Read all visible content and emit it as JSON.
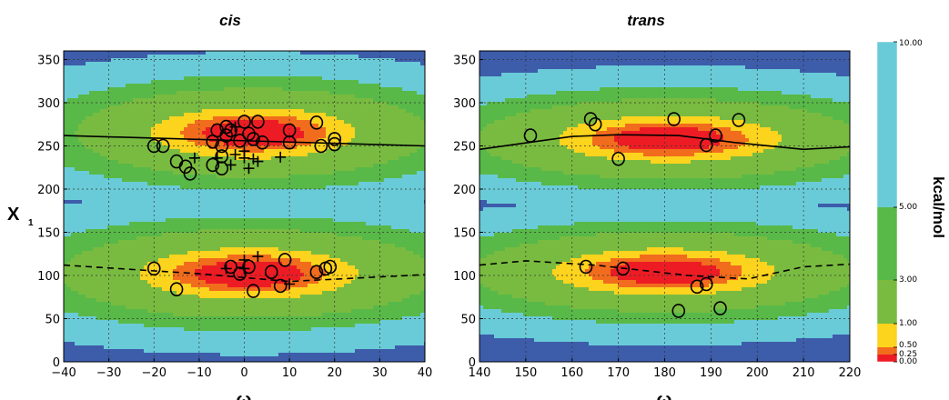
{
  "chart_data": [
    {
      "type": "heatmap",
      "title": "cis",
      "xlabel": "ω",
      "ylabel": "X",
      "ylabel_subscript": "1",
      "xlim": [
        -40,
        40
      ],
      "ylim": [
        0,
        360
      ],
      "xticks": [
        "−40",
        "−30",
        "−20",
        "−10",
        "0",
        "10",
        "20",
        "30",
        "40"
      ],
      "xtick_values": [
        -40,
        -30,
        -20,
        -10,
        0,
        10,
        20,
        30,
        40
      ],
      "yticks": [
        "0",
        "50",
        "100",
        "150",
        "200",
        "250",
        "300",
        "350"
      ],
      "ytick_values": [
        0,
        50,
        100,
        150,
        200,
        250,
        300,
        350
      ],
      "grid": true,
      "energy_field": {
        "minima": [
          {
            "x": 2,
            "y": 265,
            "sx": 16,
            "sy": 21
          },
          {
            "x": 1,
            "y": 102,
            "sx": 17,
            "sy": 21
          }
        ]
      },
      "solid_line": [
        [
          -40,
          262
        ],
        [
          40,
          250
        ]
      ],
      "dashed_line": [
        [
          -40,
          112
        ],
        [
          -10,
          102
        ],
        [
          10,
          93
        ],
        [
          40,
          101
        ]
      ],
      "circles": [
        [
          -20,
          250
        ],
        [
          -18,
          250
        ],
        [
          -15,
          232
        ],
        [
          -13,
          226
        ],
        [
          -12,
          218
        ],
        [
          -7,
          228
        ],
        [
          -7,
          255
        ],
        [
          -6,
          268
        ],
        [
          -5,
          250
        ],
        [
          -5,
          238
        ],
        [
          -5,
          224
        ],
        [
          -4,
          272
        ],
        [
          -4,
          262
        ],
        [
          -3,
          268
        ],
        [
          -1,
          256
        ],
        [
          0,
          278
        ],
        [
          1,
          264
        ],
        [
          2,
          258
        ],
        [
          3,
          278
        ],
        [
          4,
          254
        ],
        [
          10,
          268
        ],
        [
          10,
          254
        ],
        [
          16,
          277
        ],
        [
          17,
          250
        ],
        [
          20,
          258
        ],
        [
          20,
          252
        ],
        [
          -20,
          108
        ],
        [
          -15,
          84
        ],
        [
          -3,
          110
        ],
        [
          -1,
          102
        ],
        [
          1,
          110
        ],
        [
          2,
          82
        ],
        [
          6,
          104
        ],
        [
          8,
          88
        ],
        [
          9,
          118
        ],
        [
          16,
          104
        ],
        [
          18,
          108
        ],
        [
          19,
          110
        ]
      ],
      "crosses": [
        [
          -11,
          236
        ],
        [
          -6,
          236
        ],
        [
          -3,
          228
        ],
        [
          -2,
          240
        ],
        [
          -2,
          272
        ],
        [
          0,
          244
        ],
        [
          0,
          236
        ],
        [
          1,
          224
        ],
        [
          2,
          235
        ],
        [
          3,
          232
        ],
        [
          8,
          237
        ],
        [
          0,
          118
        ],
        [
          0,
          108
        ],
        [
          -4,
          108
        ],
        [
          3,
          122
        ],
        [
          10,
          90
        ]
      ]
    },
    {
      "type": "heatmap",
      "title": "trans",
      "xlabel": "ω",
      "xlim": [
        140,
        220
      ],
      "ylim": [
        0,
        360
      ],
      "xticks": [
        "140",
        "150",
        "160",
        "170",
        "180",
        "190",
        "200",
        "210",
        "220"
      ],
      "xtick_values": [
        140,
        150,
        160,
        170,
        180,
        190,
        200,
        210,
        220
      ],
      "yticks": [
        "0",
        "50",
        "100",
        "150",
        "200",
        "250",
        "300",
        "350"
      ],
      "ytick_values": [
        0,
        50,
        100,
        150,
        200,
        250,
        300,
        350
      ],
      "grid": true,
      "energy_field": {
        "minima": [
          {
            "x": 181,
            "y": 258,
            "sx": 17,
            "sy": 19
          },
          {
            "x": 180,
            "y": 104,
            "sx": 17,
            "sy": 19
          }
        ]
      },
      "solid_line": [
        [
          140,
          246
        ],
        [
          160,
          261
        ],
        [
          170,
          263
        ],
        [
          183,
          262
        ],
        [
          195,
          254
        ],
        [
          210,
          246
        ],
        [
          220,
          249
        ]
      ],
      "dashed_line": [
        [
          140,
          112
        ],
        [
          150,
          117
        ],
        [
          165,
          112
        ],
        [
          185,
          100
        ],
        [
          198,
          96
        ],
        [
          210,
          110
        ],
        [
          220,
          113
        ]
      ],
      "circles": [
        [
          151,
          262
        ],
        [
          164,
          281
        ],
        [
          165,
          275
        ],
        [
          170,
          235
        ],
        [
          182,
          281
        ],
        [
          189,
          251
        ],
        [
          191,
          262
        ],
        [
          196,
          280
        ],
        [
          163,
          110
        ],
        [
          171,
          108
        ],
        [
          187,
          87
        ],
        [
          189,
          90
        ],
        [
          183,
          59
        ],
        [
          192,
          62
        ]
      ],
      "crosses": []
    }
  ],
  "colorbar": {
    "label": "kcal/mol",
    "levels": [
      0.0,
      0.25,
      0.5,
      1.0,
      3.0,
      5.0,
      10.0
    ],
    "tick_labels": [
      "0.00",
      "0.25",
      "0.50",
      "1.00",
      "3.00",
      "5.00",
      "10.00"
    ],
    "colors": [
      "#ed1c24",
      "#f26c1d",
      "#fcd31d",
      "#79bb40",
      "#58b948",
      "#6acbd8",
      "#3d5caa"
    ]
  }
}
